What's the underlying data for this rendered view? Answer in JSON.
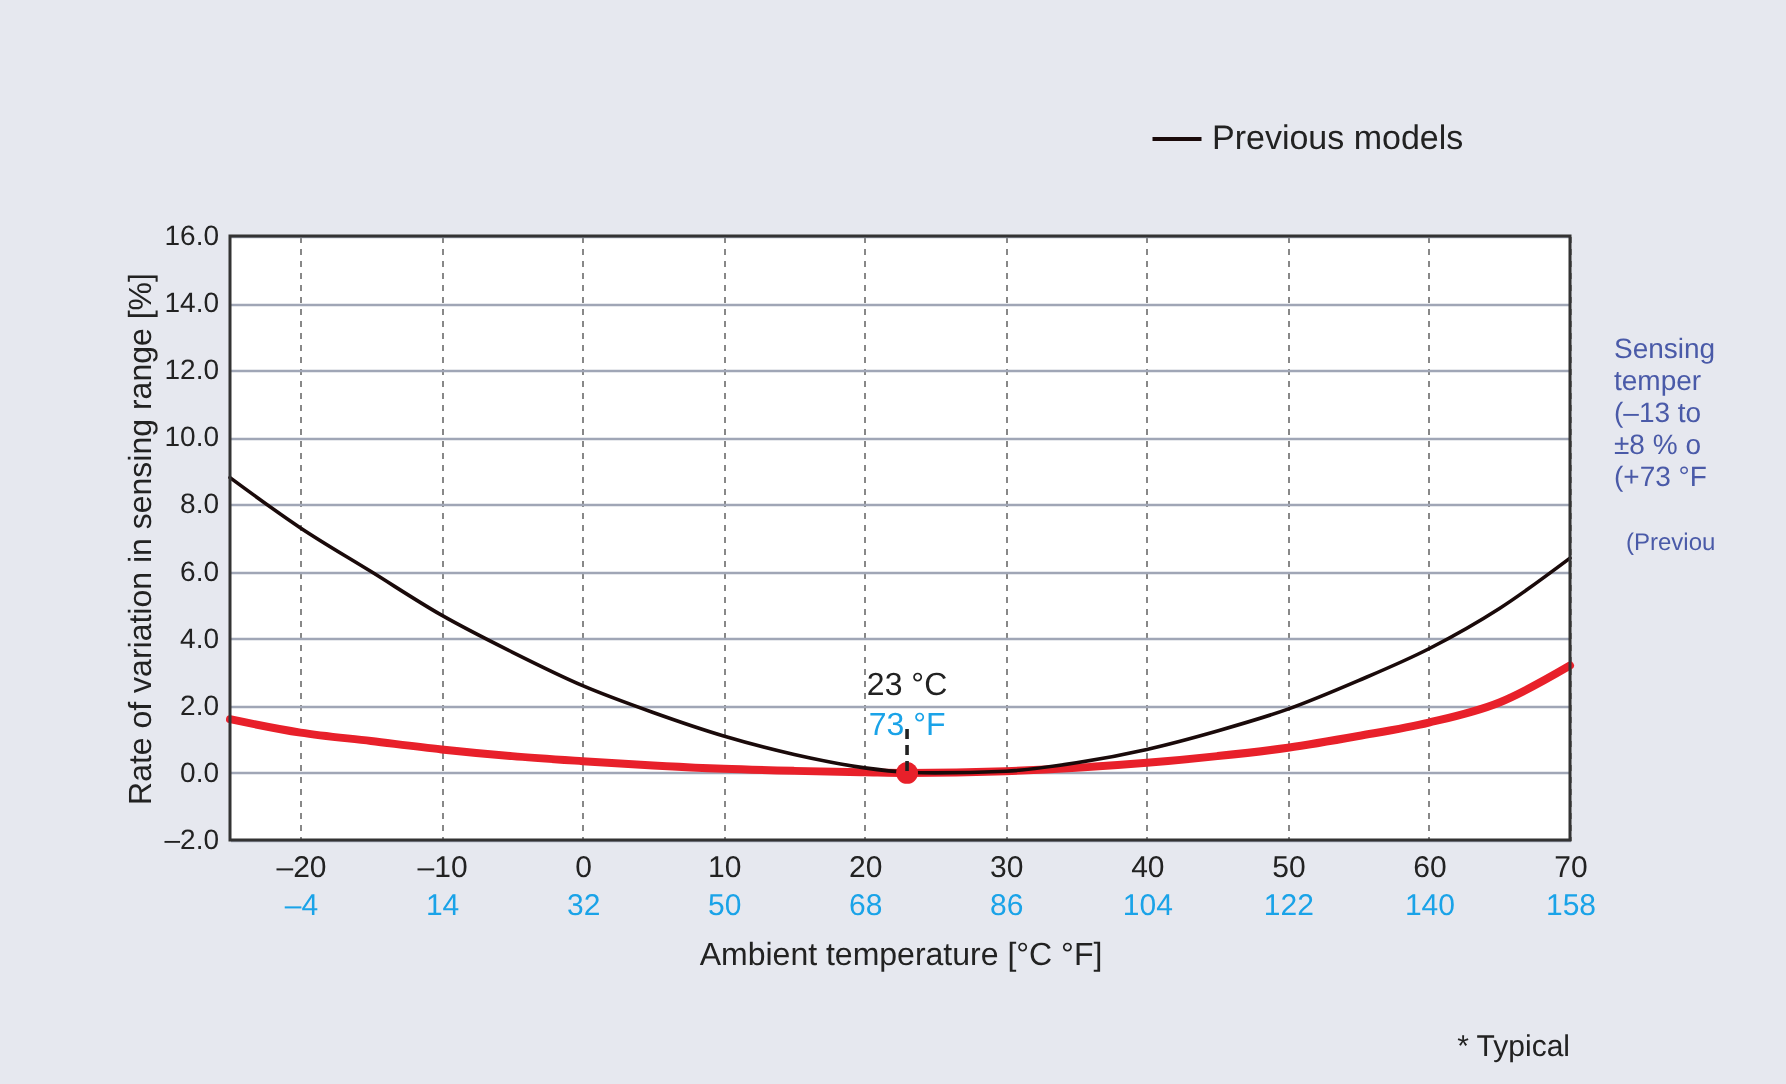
{
  "chart_data": {
    "type": "line",
    "xlabel": "Ambient temperature [°C °F]",
    "ylabel": "Rate of variation in sensing range [%]",
    "xlim": [
      -25,
      70
    ],
    "xticks": [
      {
        "value": -20,
        "label": "–20"
      },
      {
        "value": -10,
        "label": "–10"
      },
      0,
      10,
      20,
      30,
      40,
      50,
      60,
      70
    ],
    "x2lim": [
      -13,
      158
    ],
    "x2ticks": [
      {
        "value": -4,
        "label": "–4"
      },
      14,
      32,
      50,
      68,
      86,
      104,
      122,
      140,
      158
    ],
    "ylim": [
      -2,
      16
    ],
    "yticks": [
      {
        "value": -2,
        "label": "–2.0"
      },
      {
        "value": 0,
        "label": "0.0"
      },
      {
        "value": 2,
        "label": "2.0"
      },
      {
        "value": 4,
        "label": "4.0"
      },
      {
        "value": 6,
        "label": "6.0"
      },
      {
        "value": 8,
        "label": "8.0"
      },
      {
        "value": 10,
        "label": "10.0"
      },
      {
        "value": 12,
        "label": "12.0"
      },
      {
        "value": 14,
        "label": "14.0"
      },
      {
        "value": 16,
        "label": "16.0"
      }
    ],
    "grid": true,
    "legend": "top right",
    "line_style": "solid",
    "series": [
      {
        "color": "#e8202a",
        "x": [
          -25,
          -20,
          -15,
          -10,
          -5,
          0,
          5,
          10,
          15,
          20,
          23,
          30,
          35,
          40,
          45,
          50,
          55,
          60,
          65,
          70
        ],
        "values": [
          1.6,
          1.2,
          0.95,
          0.7,
          0.5,
          0.35,
          0.22,
          0.12,
          0.06,
          0.02,
          0,
          0.05,
          0.15,
          0.3,
          0.5,
          0.75,
          1.1,
          1.5,
          2.1,
          3.2
        ]
      },
      {
        "name": "Previous models",
        "color": "#1a0a0a",
        "x": [
          -25,
          -20,
          -15,
          -10,
          -5,
          0,
          5,
          10,
          15,
          20,
          23,
          25,
          30,
          35,
          40,
          45,
          50,
          55,
          60,
          65,
          70
        ],
        "values": [
          8.8,
          7.3,
          6.0,
          4.7,
          3.6,
          2.6,
          1.8,
          1.1,
          0.55,
          0.15,
          0.02,
          0,
          0.05,
          0.3,
          0.7,
          1.25,
          1.9,
          2.75,
          3.7,
          4.9,
          6.4
        ]
      },
      {
        "type": "scatter",
        "marker": "circle",
        "color": "#e8202a",
        "x": [
          23
        ],
        "values": [
          0
        ]
      }
    ],
    "annotations": [
      {
        "text": "23 °C",
        "x": 23,
        "y": 0
      },
      {
        "text": "73 °F",
        "x": 23,
        "y": 0
      },
      "Sensing\ntemper\n(–13  to\n±8 % o\n(+73 °F",
      "(Previou",
      "* Typical"
    ]
  }
}
